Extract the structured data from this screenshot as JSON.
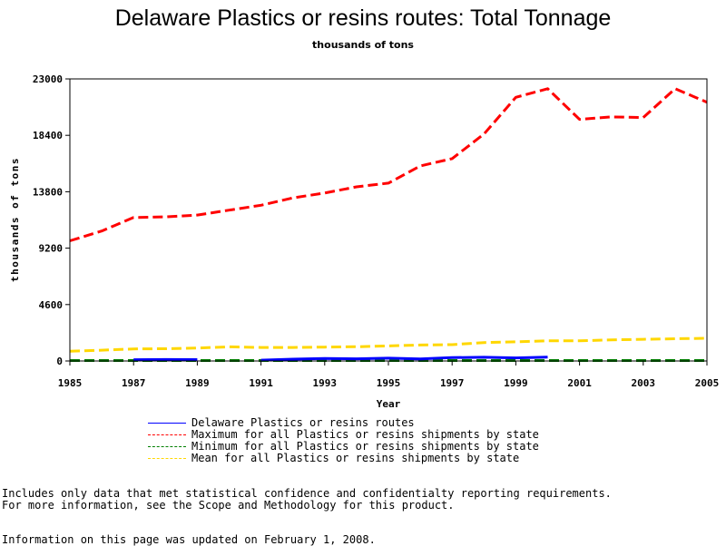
{
  "chart_data": {
    "type": "line",
    "title": "Delaware Plastics or resins routes: Total Tonnage",
    "subtitle": "thousands of tons",
    "xlabel": "Year",
    "ylabel": "thousands of tons",
    "xlim": [
      1985,
      2005
    ],
    "ylim": [
      0,
      23000
    ],
    "x_ticks": [
      1985,
      1987,
      1989,
      1991,
      1993,
      1995,
      1997,
      1999,
      2001,
      2003,
      2005
    ],
    "y_ticks": [
      0,
      4600,
      9200,
      13800,
      18400,
      23000
    ],
    "grid": false,
    "legend_placement": "bottom",
    "x": [
      1985,
      1986,
      1987,
      1988,
      1989,
      1990,
      1991,
      1992,
      1993,
      1994,
      1995,
      1996,
      1997,
      1998,
      1999,
      2000,
      2001,
      2002,
      2003,
      2004,
      2005
    ],
    "series": [
      {
        "name": "Delaware Plastics or resins routes",
        "color": "#0000ff",
        "dash": "solid",
        "values": [
          null,
          null,
          100,
          120,
          110,
          null,
          70,
          150,
          200,
          180,
          230,
          170,
          270,
          300,
          250,
          320,
          null,
          null,
          null,
          null,
          null
        ]
      },
      {
        "name": "Maximum for all Plastics or resins shipments by state",
        "color": "#ff0000",
        "dash": "dashed",
        "values": [
          9800,
          10600,
          11700,
          11750,
          11900,
          12300,
          12700,
          13300,
          13700,
          14200,
          14500,
          15900,
          16500,
          18500,
          21500,
          22200,
          19700,
          19900,
          19850,
          22200,
          21100
        ]
      },
      {
        "name": "Minimum for all Plastics or resins shipments by state",
        "color": "#007f00",
        "dash": "dashed",
        "values": [
          40,
          40,
          40,
          40,
          40,
          40,
          40,
          40,
          40,
          40,
          40,
          40,
          40,
          40,
          40,
          40,
          40,
          40,
          40,
          40,
          40
        ]
      },
      {
        "name": "Mean for all Plastics or resins shipments by state",
        "color": "#ffd700",
        "dash": "dashed",
        "values": [
          800,
          880,
          980,
          1000,
          1060,
          1150,
          1100,
          1100,
          1130,
          1160,
          1230,
          1300,
          1330,
          1500,
          1560,
          1640,
          1640,
          1720,
          1770,
          1810,
          1850
        ]
      }
    ]
  },
  "notes": {
    "line1": "Includes only data that met statistical confidence and confidentialty reporting requirements.",
    "line2": "For more information, see the Scope and Methodology for this product.",
    "line3": "Information on this page was updated on February 1, 2008."
  }
}
